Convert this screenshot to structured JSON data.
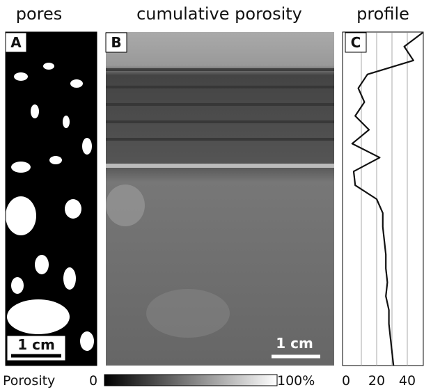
{
  "panels": [
    {
      "title": "pores",
      "label": "A",
      "scale_bar": "1 cm"
    },
    {
      "title": "cumulative porosity",
      "label": "B",
      "scale_bar": "1 cm"
    },
    {
      "title": "profile",
      "label": "C"
    }
  ],
  "colorbar": {
    "label": "Porosity",
    "min_label": "0",
    "max_label": "100%"
  },
  "chart_data": {
    "type": "line",
    "color": "#111111",
    "values": [
      50,
      38,
      44,
      14,
      8,
      12,
      6,
      15,
      4,
      22,
      5,
      6,
      20,
      24,
      24,
      25,
      26,
      26,
      27,
      26,
      28,
      28,
      29,
      30,
      31
    ],
    "xlim": [
      0,
      50
    ],
    "xticks": [
      0,
      20,
      40
    ],
    "grid": [
      10,
      20,
      30,
      40
    ]
  }
}
